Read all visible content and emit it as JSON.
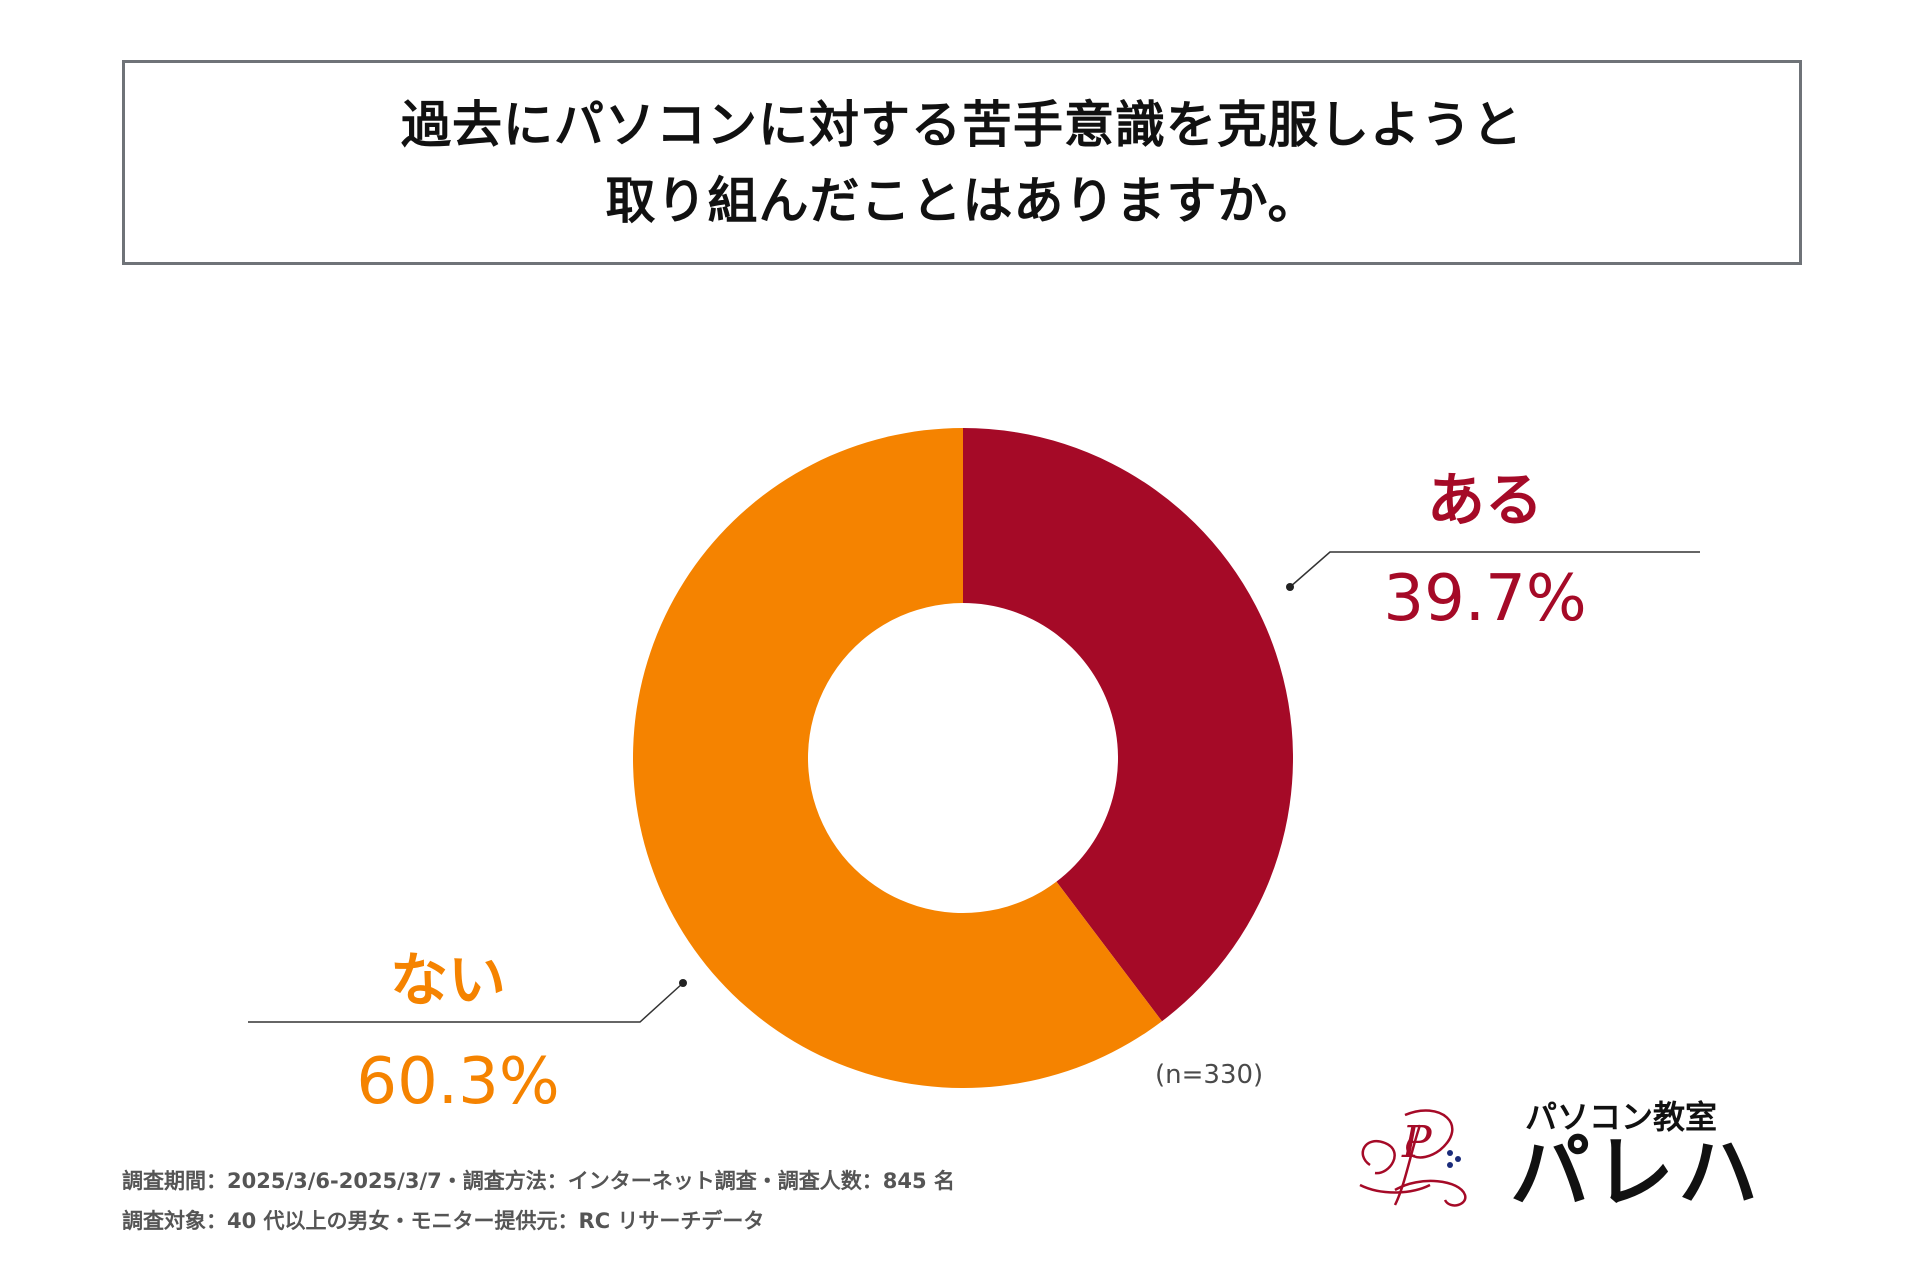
{
  "title": {
    "line1": "過去にパソコンに対する苦手意識を克服しようと",
    "line2": "取り組んだことはありますか。"
  },
  "chart_data": {
    "type": "pie",
    "donut": true,
    "categories": [
      "ある",
      "ない"
    ],
    "values": [
      39.7,
      60.3
    ],
    "value_labels": [
      "39.7%",
      "60.3%"
    ],
    "colors": [
      "#a50a27",
      "#f58300"
    ],
    "title": "過去にパソコンに対する苦手意識を克服しようと取り組んだことはありますか。"
  },
  "sample_size": "(n=330)",
  "footnotes": {
    "line1": "調査期間：2025/3/6-2025/3/7・調査方法：インターネット調査・調査人数：845 名",
    "line2": "調査対象：40 代以上の男女・モニター提供元：RC リサーチデータ"
  },
  "logo": {
    "top_text": "パソコン教室",
    "main_text": "パレハ",
    "mark_text": "P",
    "mark_color": "#a50a27"
  }
}
